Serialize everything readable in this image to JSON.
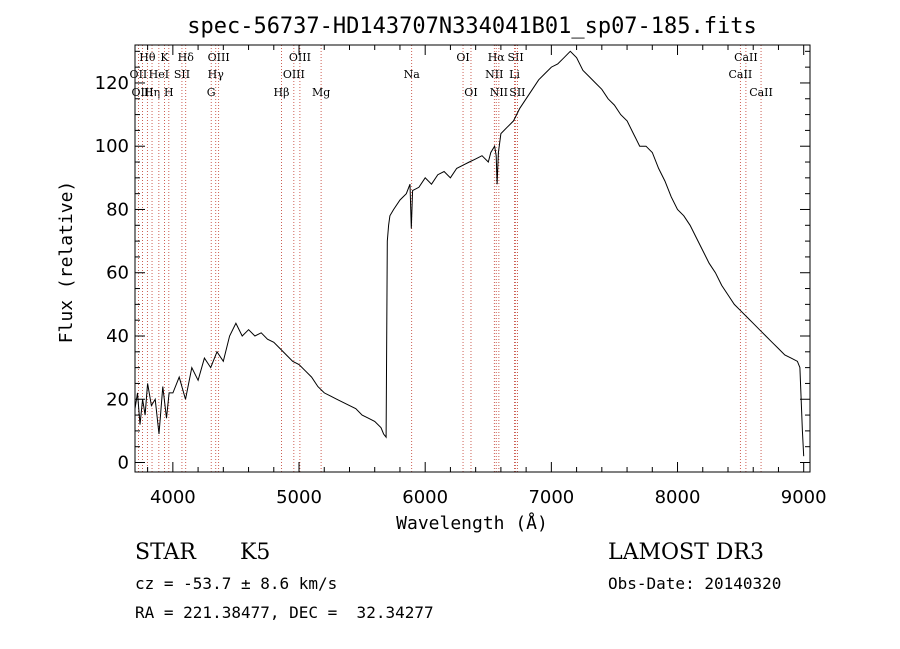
{
  "chart_data": {
    "type": "line",
    "title": "spec-56737-HD143707N334041B01_sp07-185.fits",
    "xlabel": "Wavelength (Å)",
    "ylabel": "Flux (relative)",
    "xlim": [
      3700,
      9050
    ],
    "ylim": [
      -3,
      132
    ],
    "xticks": [
      4000,
      5000,
      6000,
      7000,
      8000,
      9000
    ],
    "yticks": [
      0,
      20,
      40,
      60,
      80,
      100,
      120
    ],
    "grid": false,
    "series": [
      {
        "name": "flux",
        "x": [
          3700,
          3720,
          3740,
          3760,
          3780,
          3800,
          3830,
          3860,
          3890,
          3920,
          3950,
          3970,
          4000,
          4050,
          4100,
          4150,
          4200,
          4250,
          4300,
          4350,
          4400,
          4450,
          4500,
          4550,
          4600,
          4650,
          4700,
          4750,
          4800,
          4850,
          4900,
          4950,
          5000,
          5050,
          5100,
          5150,
          5200,
          5250,
          5300,
          5350,
          5400,
          5450,
          5500,
          5550,
          5600,
          5650,
          5670,
          5690,
          5700,
          5710,
          5720,
          5750,
          5800,
          5850,
          5880,
          5890,
          5900,
          5950,
          6000,
          6050,
          6100,
          6150,
          6200,
          6250,
          6300,
          6350,
          6400,
          6450,
          6500,
          6520,
          6550,
          6563,
          6570,
          6580,
          6600,
          6650,
          6700,
          6750,
          6800,
          6850,
          6900,
          6950,
          7000,
          7050,
          7100,
          7150,
          7200,
          7250,
          7300,
          7350,
          7400,
          7450,
          7500,
          7550,
          7600,
          7650,
          7700,
          7750,
          7800,
          7850,
          7900,
          7950,
          8000,
          8050,
          8100,
          8150,
          8200,
          8250,
          8300,
          8350,
          8400,
          8450,
          8500,
          8550,
          8600,
          8650,
          8700,
          8750,
          8800,
          8850,
          8900,
          8950,
          8970,
          8990,
          9000
        ],
        "y": [
          17,
          22,
          12,
          20,
          15,
          25,
          18,
          20,
          9,
          24,
          14,
          22,
          22,
          27,
          20,
          30,
          26,
          33,
          30,
          35,
          32,
          40,
          44,
          40,
          42,
          40,
          41,
          39,
          38,
          36,
          34,
          32,
          31,
          29,
          27,
          24,
          22,
          21,
          20,
          19,
          18,
          17,
          15,
          14,
          13,
          11,
          9,
          8,
          70,
          75,
          78,
          80,
          83,
          85,
          88,
          74,
          86,
          87,
          90,
          88,
          91,
          92,
          90,
          93,
          94,
          95,
          96,
          97,
          95,
          98,
          100,
          97,
          88,
          98,
          104,
          106,
          108,
          112,
          115,
          118,
          121,
          123,
          125,
          126,
          128,
          130,
          128,
          124,
          122,
          120,
          118,
          115,
          113,
          110,
          108,
          104,
          100,
          100,
          98,
          93,
          89,
          84,
          80,
          78,
          75,
          71,
          67,
          63,
          60,
          56,
          53,
          50,
          48,
          46,
          44,
          42,
          40,
          38,
          36,
          34,
          33,
          32,
          30,
          10,
          2
        ]
      }
    ],
    "line_markers": [
      {
        "label": "Hθ",
        "wavelength": 3798,
        "row": 1
      },
      {
        "label": "OII",
        "wavelength": 3727,
        "row": 2
      },
      {
        "label": "Hη",
        "wavelength": 3835,
        "row": 3
      },
      {
        "label": "OIII",
        "wavelength": 3760,
        "row": 3
      },
      {
        "label": "K",
        "wavelength": 3934,
        "row": 1
      },
      {
        "label": "HeI",
        "wavelength": 3889,
        "row": 2
      },
      {
        "label": "H",
        "wavelength": 3968,
        "row": 3
      },
      {
        "label": "Hδ",
        "wavelength": 4102,
        "row": 1
      },
      {
        "label": "SII",
        "wavelength": 4072,
        "row": 2
      },
      {
        "label": "OIII",
        "wavelength": 4363,
        "row": 1
      },
      {
        "label": "Hγ",
        "wavelength": 4340,
        "row": 2
      },
      {
        "label": "G",
        "wavelength": 4304,
        "row": 3
      },
      {
        "label": "Hβ",
        "wavelength": 4861,
        "row": 3
      },
      {
        "label": "OIII",
        "wavelength": 5007,
        "row": 1
      },
      {
        "label": "OIII",
        "wavelength": 4959,
        "row": 2
      },
      {
        "label": "Mg",
        "wavelength": 5175,
        "row": 3
      },
      {
        "label": "Na",
        "wavelength": 5893,
        "row": 2
      },
      {
        "label": "OI",
        "wavelength": 6300,
        "row": 1
      },
      {
        "label": "OI",
        "wavelength": 6363,
        "row": 3
      },
      {
        "label": "Hα",
        "wavelength": 6563,
        "row": 1
      },
      {
        "label": "NII",
        "wavelength": 6548,
        "row": 2
      },
      {
        "label": "NII",
        "wavelength": 6584,
        "row": 3
      },
      {
        "label": "SII",
        "wavelength": 6717,
        "row": 1
      },
      {
        "label": "Li",
        "wavelength": 6708,
        "row": 2
      },
      {
        "label": "SII",
        "wavelength": 6731,
        "row": 3
      },
      {
        "label": "CaII",
        "wavelength": 8542,
        "row": 1
      },
      {
        "label": "CaII",
        "wavelength": 8498,
        "row": 2
      },
      {
        "label": "CaII",
        "wavelength": 8662,
        "row": 3
      }
    ]
  },
  "info": {
    "object_class": "STAR",
    "subclass": "K5",
    "survey": "LAMOST DR3",
    "cz": "cz = -53.7 ± 8.6 km/s",
    "obs_date": "Obs-Date: 20140320",
    "coords": "RA = 221.38477, DEC =  32.34277"
  },
  "colors": {
    "axis": "#000000",
    "spectrum": "#000000",
    "marker_line": "#c0392b"
  }
}
